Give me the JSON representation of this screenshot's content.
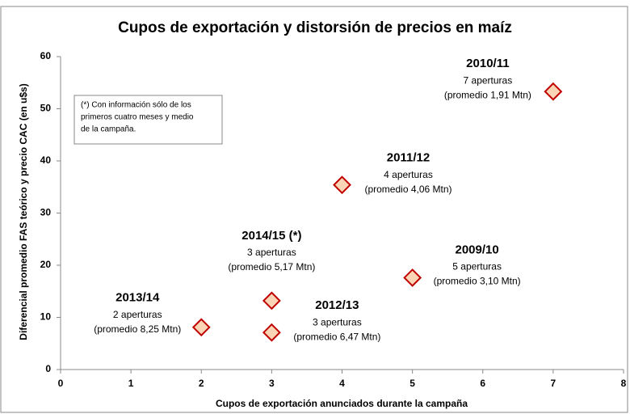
{
  "chart_data": {
    "type": "scatter",
    "title": "Cupos de exportación y distorsión de precios en maíz",
    "x_label": "Cupos de exportación anunciados durante la campaña",
    "y_label": "Diferencial promedio FAS teórico y precio CAC (en u$s)",
    "note": [
      "(*) Con información sólo de los",
      "primeros cuatro meses y medio",
      "de la campaña."
    ],
    "series": [
      {
        "color": "#fbd5b5",
        "edge_color": "#c00000",
        "x": [
          7,
          4,
          5,
          3,
          2,
          3
        ],
        "values": [
          53.3,
          35.4,
          17.6,
          13.2,
          8.1,
          7.1
        ],
        "point_labels": [
          [
            "2010/11",
            "7 aperturas",
            "(promedio 1,91 Mtn)"
          ],
          [
            "2011/12",
            "4 aperturas",
            "(promedio 4,06 Mtn)"
          ],
          [
            "2009/10",
            "5 aperturas",
            "(promedio 3,10 Mtn)"
          ],
          [
            "2014/15 (*)",
            "3 aperturas",
            "(promedio 5,17 Mtn)"
          ],
          [
            "2013/14",
            "2 aperturas",
            "(promedio 8,25 Mtn)"
          ],
          [
            "2012/13",
            "3 aperturas",
            "(promedio 6,47 Mtn)"
          ]
        ]
      }
    ],
    "xlim": [
      0,
      8
    ],
    "xticks": [
      0,
      1,
      2,
      3,
      4,
      5,
      6,
      7,
      8
    ],
    "ylim": [
      0,
      60
    ],
    "yticks": [
      0,
      10,
      20,
      30,
      40,
      50,
      60
    ],
    "grid": false
  }
}
